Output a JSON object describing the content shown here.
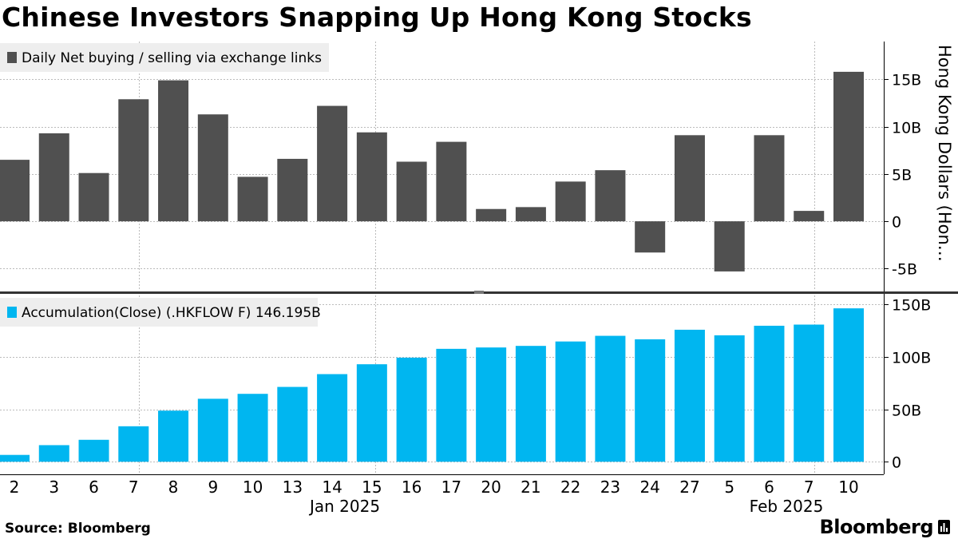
{
  "header": {
    "title": "Chinese Investors Snapping Up Hong Kong Stocks"
  },
  "footer": {
    "source": "Source: Bloomberg",
    "brand": "Bloomberg"
  },
  "colors": {
    "daily": "#505050",
    "accum": "#00b6f0",
    "legend_bg": "#eeeeee",
    "grid": "#bbbbbb",
    "divider": "#333333"
  },
  "chart_data": [
    {
      "type": "bar",
      "title": "Chinese Investors Snapping Up Hong Kong Stocks",
      "legend": "Daily Net buying / selling via exchange links",
      "legend_position": "top-left",
      "ylabel": "Hong Kong Dollars (Hon…",
      "ylim": [
        -7.5,
        19
      ],
      "yticks": [
        -5,
        0,
        5,
        10,
        15
      ],
      "ytick_labels": [
        "-5B",
        "0",
        "5B",
        "10B",
        "15B"
      ],
      "categories": [
        "2",
        "3",
        "6",
        "7",
        "8",
        "9",
        "10",
        "13",
        "14",
        "15",
        "16",
        "17",
        "20",
        "21",
        "22",
        "23",
        "24",
        "27",
        "5",
        "6",
        "7",
        "10"
      ],
      "values": [
        6.5,
        9.3,
        5.1,
        12.9,
        14.9,
        11.3,
        4.7,
        6.6,
        12.2,
        9.4,
        6.3,
        8.4,
        1.3,
        1.5,
        4.2,
        5.4,
        -3.3,
        9.1,
        -5.3,
        9.1,
        1.1,
        15.8
      ],
      "unit": "B"
    },
    {
      "type": "bar",
      "legend": "Accumulation(Close) (.HKFLOW F) 146.195B",
      "legend_position": "top-left",
      "ylim": [
        -12,
        160
      ],
      "yticks": [
        0,
        50,
        100,
        150
      ],
      "ytick_labels": [
        "0",
        "50B",
        "100B",
        "150B"
      ],
      "categories": [
        "2",
        "3",
        "6",
        "7",
        "8",
        "9",
        "10",
        "13",
        "14",
        "15",
        "16",
        "17",
        "20",
        "21",
        "22",
        "23",
        "24",
        "27",
        "5",
        "6",
        "7",
        "10"
      ],
      "values": [
        6.5,
        15.8,
        20.9,
        33.8,
        48.7,
        60.0,
        64.7,
        71.3,
        83.5,
        92.9,
        99.2,
        107.6,
        108.9,
        110.4,
        114.6,
        120.0,
        116.7,
        125.8,
        120.5,
        129.6,
        130.7,
        146.195
      ],
      "unit": "B"
    }
  ],
  "x_axis": {
    "month_labels": [
      {
        "label": "Jan 2025"
      },
      {
        "label": "Feb 2025"
      }
    ]
  }
}
